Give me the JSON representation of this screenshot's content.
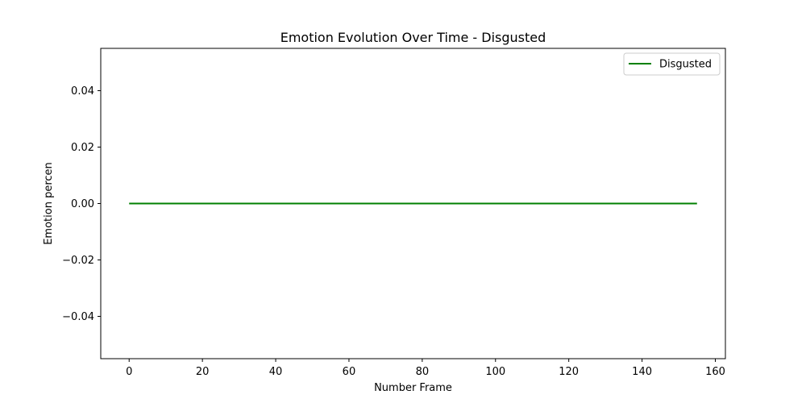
{
  "chart_data": {
    "type": "line",
    "title": "Emotion Evolution Over Time - Disgusted",
    "xlabel": "Number Frame",
    "ylabel": "Emotion percen",
    "xlim": [
      -7.75,
      162.75
    ],
    "ylim": [
      -0.055,
      0.055
    ],
    "x_ticks": [
      0,
      20,
      40,
      60,
      80,
      100,
      120,
      140,
      160
    ],
    "y_ticks": [
      -0.04,
      -0.02,
      0.0,
      0.02,
      0.04
    ],
    "y_tick_labels": [
      "−0.04",
      "−0.02",
      "0.00",
      "0.02",
      "0.04"
    ],
    "grid": false,
    "legend_position": "top-right",
    "series": [
      {
        "name": "Disgusted",
        "color": "#008000",
        "x": [
          0,
          155
        ],
        "y": [
          0.0,
          0.0
        ]
      }
    ]
  }
}
